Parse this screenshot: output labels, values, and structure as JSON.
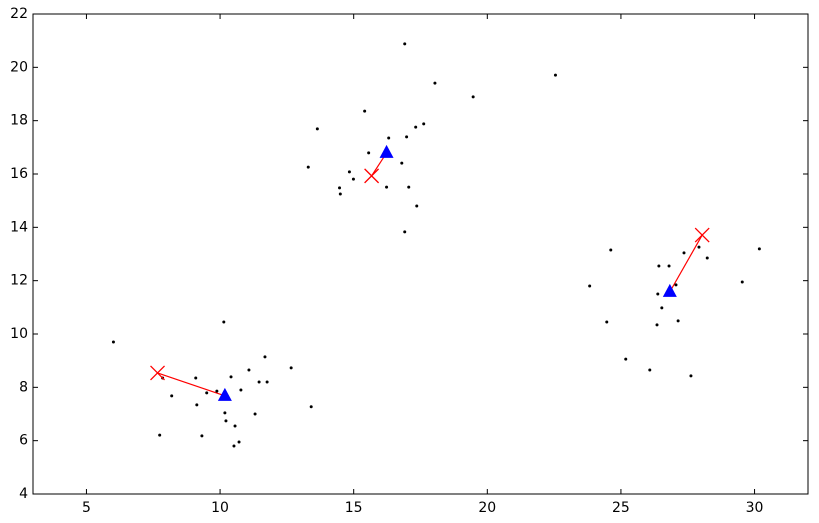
{
  "chart_data": {
    "type": "scatter",
    "xlim": [
      3,
      32
    ],
    "ylim": [
      4,
      22
    ],
    "xticks": [
      5,
      10,
      15,
      20,
      25,
      30
    ],
    "yticks": [
      4,
      6,
      8,
      10,
      12,
      14,
      16,
      18,
      20,
      22
    ],
    "series": [
      {
        "color": "#000000",
        "marker": "dot",
        "x": [
          6.01,
          7.74,
          7.85,
          8.19,
          9.09,
          9.13,
          9.32,
          9.5,
          9.88,
          10.14,
          10.18,
          10.22,
          10.41,
          10.56,
          10.52,
          10.71,
          10.78,
          11.08,
          11.31,
          11.46,
          11.68,
          11.76,
          12.66,
          13.41,
          13.3,
          13.64,
          14.47,
          14.5,
          14.84,
          14.99,
          15.41,
          15.56,
          16.23,
          16.31,
          16.8,
          16.91,
          16.98,
          16.91,
          17.06,
          17.36,
          17.32,
          17.62,
          18.04,
          19.47,
          22.55,
          23.83,
          24.47,
          24.62,
          25.18,
          26.08,
          26.35,
          26.38,
          26.42,
          26.53,
          26.8,
          27.06,
          27.14,
          27.36,
          27.62,
          27.92,
          28.23,
          29.54,
          30.18
        ],
        "values": [
          9.7,
          6.21,
          8.35,
          7.68,
          8.35,
          7.34,
          6.18,
          7.79,
          7.86,
          10.45,
          7.04,
          6.74,
          8.39,
          6.55,
          5.8,
          5.95,
          7.9,
          8.65,
          7.0,
          8.2,
          9.14,
          8.2,
          8.73,
          7.27,
          16.26,
          17.69,
          15.48,
          15.25,
          16.08,
          15.81,
          18.36,
          16.79,
          15.51,
          17.35,
          16.41,
          20.88,
          17.39,
          13.83,
          15.51,
          14.8,
          17.76,
          17.88,
          19.41,
          18.89,
          19.71,
          11.8,
          10.45,
          13.15,
          9.06,
          8.65,
          10.34,
          11.5,
          12.55,
          10.98,
          12.55,
          11.84,
          10.49,
          13.04,
          8.43,
          13.26,
          12.85,
          11.95,
          13.19
        ]
      },
      {
        "color": "#ff0000",
        "marker": "x",
        "x": [
          7.66,
          15.67,
          28.04
        ],
        "values": [
          8.54,
          15.93,
          13.71
        ]
      },
      {
        "color": "#0000ff",
        "marker": "triangle",
        "x": [
          10.18,
          16.23,
          26.83
        ],
        "values": [
          7.68,
          16.79,
          11.58
        ]
      }
    ]
  }
}
